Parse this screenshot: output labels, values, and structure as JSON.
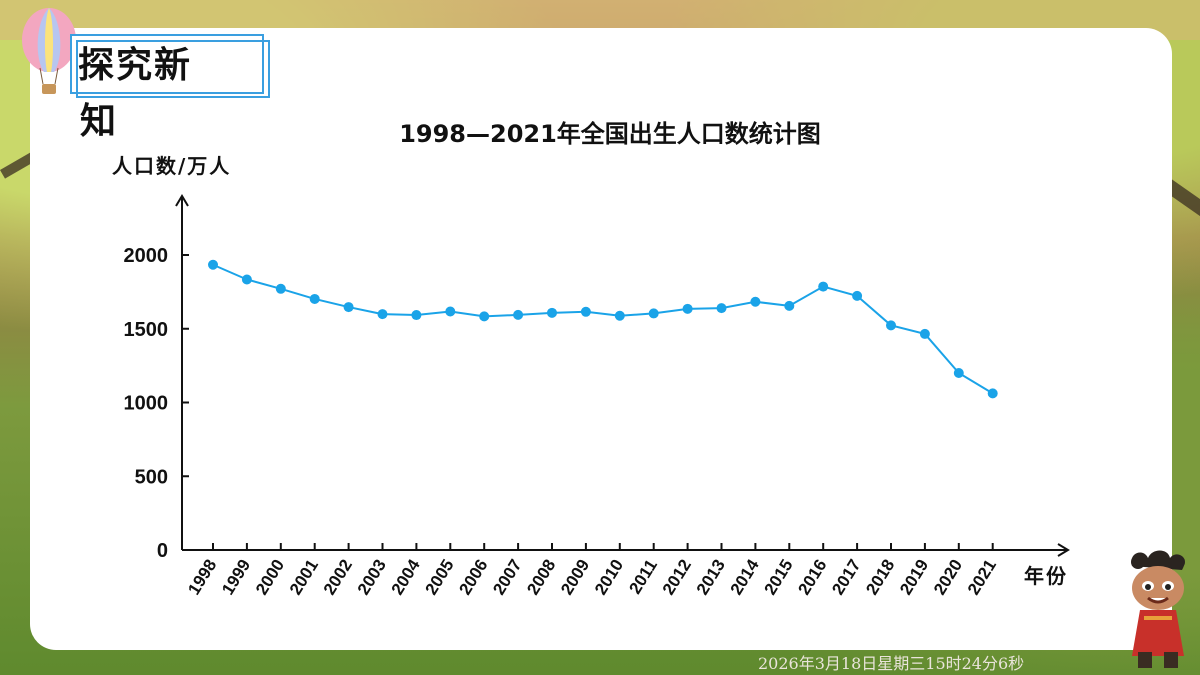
{
  "slide": {
    "heading": "探究新",
    "heading_tail": "知",
    "timestamp": "2026年3月18日星期三15时24分6秒"
  },
  "chart_data": {
    "type": "line",
    "title": "1998—2021年全国出生人口数统计图",
    "ylabel": "人口数/万人",
    "xlabel": "年份",
    "categories": [
      "1998",
      "1999",
      "2000",
      "2001",
      "2002",
      "2003",
      "2004",
      "2005",
      "2006",
      "2007",
      "2008",
      "2009",
      "2010",
      "2011",
      "2012",
      "2013",
      "2014",
      "2015",
      "2016",
      "2017",
      "2018",
      "2019",
      "2020",
      "2021"
    ],
    "series": [
      {
        "values": [
          1934,
          1834,
          1771,
          1702,
          1647,
          1599,
          1593,
          1617,
          1584,
          1594,
          1608,
          1615,
          1588,
          1604,
          1635,
          1640,
          1683,
          1655,
          1786,
          1723,
          1523,
          1465,
          1200,
          1062
        ]
      }
    ],
    "yticks": [
      0,
      500,
      1000,
      1500,
      2000
    ],
    "ylim": [
      0,
      2000
    ],
    "grid": false,
    "colors": {
      "line": "#1aa3e8",
      "axis": "#111111"
    }
  }
}
